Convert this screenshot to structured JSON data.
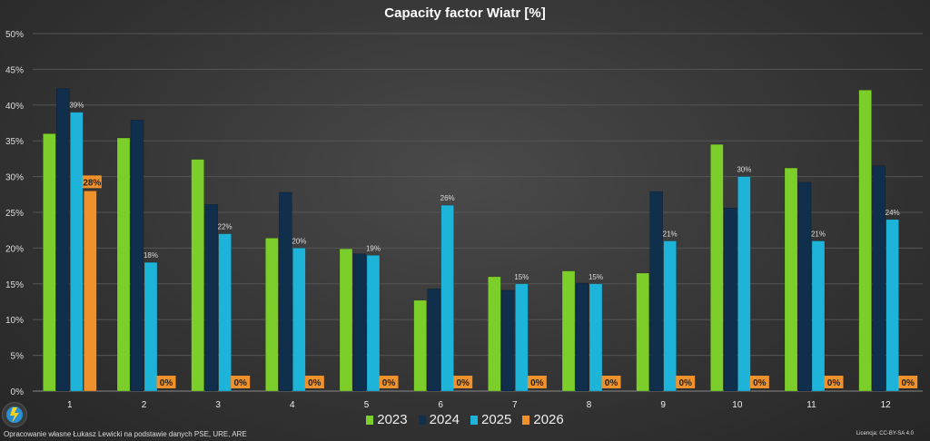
{
  "chart_data": {
    "type": "bar",
    "title": "Capacity factor Wiatr [%]",
    "xlabel": "",
    "ylabel": "",
    "ylim": [
      0,
      50
    ],
    "yticks": [
      "0%",
      "5%",
      "10%",
      "15%",
      "20%",
      "25%",
      "30%",
      "35%",
      "40%",
      "45%",
      "50%"
    ],
    "grid": true,
    "legend_position": "bottom",
    "categories": [
      "1",
      "2",
      "3",
      "4",
      "5",
      "6",
      "7",
      "8",
      "9",
      "10",
      "11",
      "12"
    ],
    "series": [
      {
        "name": "2023",
        "color": "#7ccf2a",
        "values": [
          36,
          35.4,
          32.4,
          21.4,
          19.9,
          12.7,
          16,
          16.8,
          16.5,
          34.5,
          31.2,
          42.1
        ]
      },
      {
        "name": "2024",
        "color": "#0f2f4d",
        "values": [
          42.3,
          37.9,
          26.1,
          27.8,
          19.2,
          14.3,
          14.1,
          15.1,
          27.9,
          25.6,
          29.2,
          31.5
        ]
      },
      {
        "name": "2025",
        "color": "#1eb3d8",
        "values": [
          39,
          18,
          22,
          20,
          19,
          26,
          15,
          15,
          21,
          30,
          21,
          24
        ],
        "data_labels": [
          "39%",
          "18%",
          "22%",
          "20%",
          "19%",
          "26%",
          "15%",
          "15%",
          "21%",
          "30%",
          "21%",
          "24%"
        ]
      },
      {
        "name": "2026",
        "color": "#f0922c",
        "values": [
          28,
          0,
          0,
          0,
          0,
          0,
          0,
          0,
          0,
          0,
          0,
          0
        ],
        "data_labels": [
          "28%",
          "0%",
          "0%",
          "0%",
          "0%",
          "0%",
          "0%",
          "0%",
          "0%",
          "0%",
          "0%",
          "0%"
        ]
      }
    ]
  },
  "footer": {
    "credit": "Opracowanie własne Łukasz Lewicki na podstawie danych PSE, URE, ARE",
    "license": "Licencja: CC-BY-SA 4.0"
  }
}
